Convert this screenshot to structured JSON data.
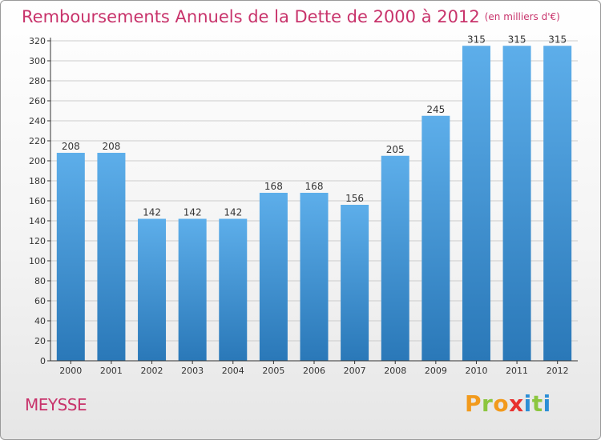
{
  "header": {
    "title": "Remboursements Annuels de la Dette de 2000 à 2012",
    "unit_note": "(en milliers d'€)"
  },
  "footer": {
    "city": "MEYSSE",
    "brand": "Proxiti"
  },
  "colors": {
    "title": "#c8336b",
    "bar_top": "#5daeea",
    "bar_bottom": "#2a78b8",
    "grid": "#cccccc",
    "brand_letters": [
      "#f29a1c",
      "#8cc63f",
      "#f29a1c",
      "#e8312f",
      "#2c8fd6",
      "#8cc63f",
      "#2c8fd6"
    ]
  },
  "chart_data": {
    "type": "bar",
    "categories": [
      "2000",
      "2001",
      "2002",
      "2003",
      "2004",
      "2005",
      "2006",
      "2007",
      "2008",
      "2009",
      "2010",
      "2011",
      "2012"
    ],
    "values": [
      208,
      208,
      142,
      142,
      142,
      168,
      168,
      156,
      205,
      245,
      315,
      315,
      315
    ],
    "data_labels": [
      "208",
      "208",
      "142",
      "142",
      "142",
      "168",
      "168",
      "156",
      "205",
      "245",
      "315",
      "315",
      "315"
    ],
    "yticks": [
      0,
      20,
      40,
      60,
      80,
      100,
      120,
      140,
      160,
      180,
      200,
      220,
      240,
      260,
      280,
      300,
      320
    ],
    "ytick_labels": [
      "0",
      "20",
      "40",
      "60",
      "80",
      "100",
      "120",
      "140",
      "160",
      "180",
      "200",
      "220",
      "240",
      "260",
      "280",
      "300",
      "320"
    ],
    "ylim": [
      0,
      320
    ],
    "grid": true,
    "legend": "none"
  }
}
